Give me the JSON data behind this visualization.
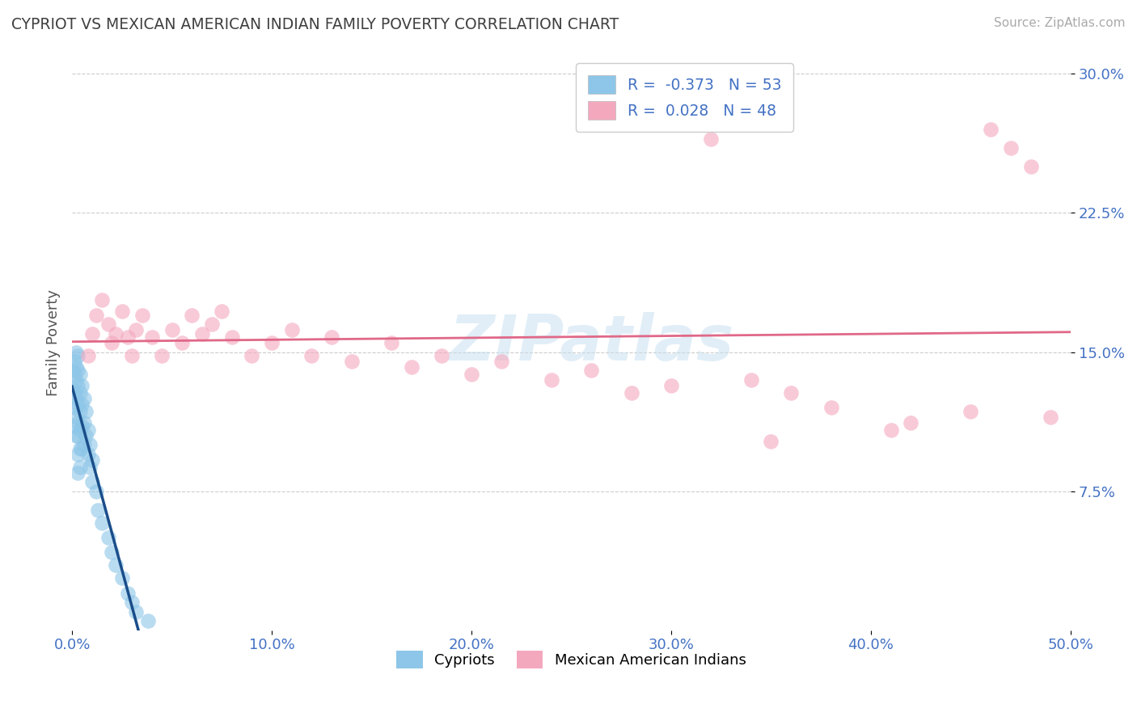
{
  "title": "CYPRIOT VS MEXICAN AMERICAN INDIAN FAMILY POVERTY CORRELATION CHART",
  "source": "Source: ZipAtlas.com",
  "ylabel_text": "Family Poverty",
  "watermark": "ZIPatlas",
  "cypriot_R": -0.373,
  "cypriot_N": 53,
  "mexican_R": 0.028,
  "mexican_N": 48,
  "xlim": [
    0.0,
    0.5
  ],
  "ylim": [
    0.0,
    0.31
  ],
  "xticks": [
    0.0,
    0.1,
    0.2,
    0.3,
    0.4,
    0.5
  ],
  "xtick_labels": [
    "0.0%",
    "10.0%",
    "20.0%",
    "30.0%",
    "40.0%",
    "50.0%"
  ],
  "yticks": [
    0.075,
    0.15,
    0.225,
    0.3
  ],
  "ytick_labels": [
    "7.5%",
    "15.0%",
    "22.5%",
    "30.0%"
  ],
  "cypriot_color": "#8dc6e8",
  "mexican_color": "#f4a8be",
  "cypriot_line_color": "#1a4e8a",
  "mexican_line_color": "#e06888",
  "background_color": "#ffffff",
  "grid_color": "#cccccc",
  "title_color": "#404040",
  "legend_label_cypriot": "Cypriots",
  "legend_label_mexican": "Mexican American Indians",
  "cypriot_x": [
    0.0,
    0.0,
    0.001,
    0.001,
    0.001,
    0.001,
    0.001,
    0.002,
    0.002,
    0.002,
    0.002,
    0.002,
    0.002,
    0.003,
    0.003,
    0.003,
    0.003,
    0.003,
    0.003,
    0.003,
    0.003,
    0.004,
    0.004,
    0.004,
    0.004,
    0.004,
    0.004,
    0.005,
    0.005,
    0.005,
    0.005,
    0.006,
    0.006,
    0.006,
    0.007,
    0.007,
    0.008,
    0.008,
    0.009,
    0.009,
    0.01,
    0.01,
    0.012,
    0.013,
    0.015,
    0.018,
    0.02,
    0.022,
    0.025,
    0.028,
    0.03,
    0.032,
    0.038
  ],
  "cypriot_y": [
    0.14,
    0.13,
    0.145,
    0.138,
    0.128,
    0.12,
    0.11,
    0.15,
    0.142,
    0.135,
    0.125,
    0.115,
    0.105,
    0.148,
    0.14,
    0.132,
    0.122,
    0.112,
    0.105,
    0.095,
    0.085,
    0.138,
    0.128,
    0.118,
    0.108,
    0.098,
    0.088,
    0.132,
    0.122,
    0.11,
    0.098,
    0.125,
    0.112,
    0.1,
    0.118,
    0.105,
    0.108,
    0.095,
    0.1,
    0.088,
    0.092,
    0.08,
    0.075,
    0.065,
    0.058,
    0.05,
    0.042,
    0.035,
    0.028,
    0.02,
    0.015,
    0.01,
    0.005
  ],
  "mexican_x": [
    0.008,
    0.01,
    0.012,
    0.015,
    0.018,
    0.02,
    0.022,
    0.025,
    0.028,
    0.03,
    0.032,
    0.035,
    0.04,
    0.045,
    0.05,
    0.055,
    0.06,
    0.065,
    0.07,
    0.075,
    0.08,
    0.09,
    0.1,
    0.11,
    0.12,
    0.13,
    0.14,
    0.16,
    0.17,
    0.185,
    0.2,
    0.215,
    0.24,
    0.26,
    0.28,
    0.3,
    0.32,
    0.34,
    0.36,
    0.38,
    0.42,
    0.45,
    0.46,
    0.47,
    0.48,
    0.49,
    0.41,
    0.35
  ],
  "mexican_y": [
    0.148,
    0.16,
    0.17,
    0.178,
    0.165,
    0.155,
    0.16,
    0.172,
    0.158,
    0.148,
    0.162,
    0.17,
    0.158,
    0.148,
    0.162,
    0.155,
    0.17,
    0.16,
    0.165,
    0.172,
    0.158,
    0.148,
    0.155,
    0.162,
    0.148,
    0.158,
    0.145,
    0.155,
    0.142,
    0.148,
    0.138,
    0.145,
    0.135,
    0.14,
    0.128,
    0.132,
    0.265,
    0.135,
    0.128,
    0.12,
    0.112,
    0.118,
    0.27,
    0.26,
    0.25,
    0.115,
    0.108,
    0.102
  ]
}
